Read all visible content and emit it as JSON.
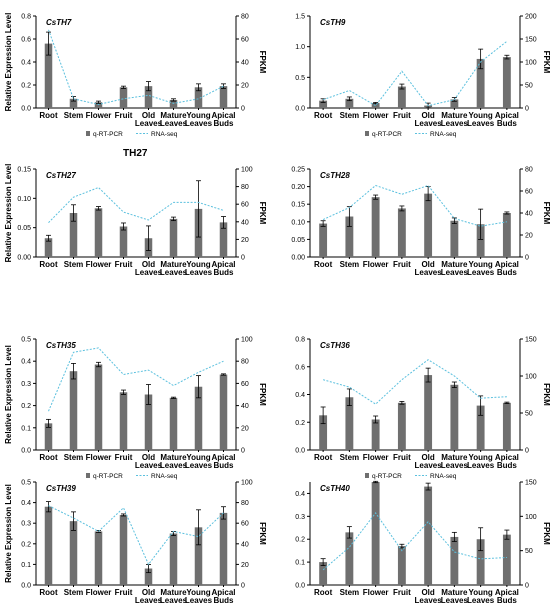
{
  "stray_label": "TH27",
  "colors": {
    "bar": "#6f6f6f",
    "line": "#5bc0de",
    "axis": "#000000"
  },
  "chart_data": [
    {
      "type": "bar",
      "title": "CsTH7",
      "ylabel": "Relative Expression Level",
      "y2label": "FPKM",
      "categories": [
        "Root",
        "Stem",
        "Flower",
        "Fruit",
        "Old Leaves",
        "Mature Leaves",
        "Young Leaves",
        "Apical Buds"
      ],
      "ylim": [
        0,
        0.8
      ],
      "yticks": [
        "0.0",
        "0.2",
        "0.4",
        "0.6",
        "0.8"
      ],
      "y2lim": [
        0,
        80
      ],
      "y2ticks": [
        "0",
        "20",
        "40",
        "60",
        "80"
      ],
      "series": [
        {
          "name": "q-RT-PCR",
          "type": "bar",
          "values": [
            0.56,
            0.08,
            0.05,
            0.18,
            0.19,
            0.07,
            0.18,
            0.19
          ],
          "errors": [
            0.1,
            0.02,
            0.01,
            0.01,
            0.04,
            0.01,
            0.03,
            0.02
          ]
        },
        {
          "name": "RNA-seq",
          "type": "line",
          "axis": "right",
          "values": [
            68,
            8,
            3,
            8,
            11,
            4,
            8,
            19
          ]
        }
      ],
      "legend": "bottom"
    },
    {
      "type": "bar",
      "title": "CsTH9",
      "ylabel": "",
      "y2label": "FPKM",
      "categories": [
        "Root",
        "Stem",
        "Flower",
        "Fruit",
        "Old Leaves",
        "Mature Leaves",
        "Young Leaves",
        "Apical Buds"
      ],
      "ylim": [
        0,
        1.5
      ],
      "yticks": [
        "0.0",
        "0.5",
        "1.0",
        "1.5"
      ],
      "y2lim": [
        0,
        200
      ],
      "y2ticks": [
        "0",
        "50",
        "100",
        "150",
        "200"
      ],
      "series": [
        {
          "name": "q-RT-PCR",
          "type": "bar",
          "values": [
            0.12,
            0.15,
            0.08,
            0.35,
            0.04,
            0.14,
            0.8,
            0.83
          ],
          "errors": [
            0.03,
            0.03,
            0.01,
            0.04,
            0.04,
            0.03,
            0.16,
            0.03
          ]
        },
        {
          "name": "RNA-seq",
          "type": "line",
          "axis": "right",
          "values": [
            18,
            38,
            5,
            80,
            5,
            18,
            100,
            145
          ]
        }
      ],
      "legend": "bottom"
    },
    {
      "type": "bar",
      "title": "CsTH27",
      "ylabel": "Relative Expression Level",
      "y2label": "FPKM",
      "categories": [
        "Root",
        "Stem",
        "Flower",
        "Fruit",
        "Old Leaves",
        "Mature Leaves",
        "Young Leaves",
        "Apical Buds"
      ],
      "ylim": [
        0,
        0.15
      ],
      "yticks": [
        "0.00",
        "0.05",
        "0.10",
        "0.15"
      ],
      "y2lim": [
        0,
        100
      ],
      "y2ticks": [
        "0",
        "20",
        "40",
        "60",
        "80",
        "100"
      ],
      "series": [
        {
          "name": "q-RT-PCR",
          "type": "bar",
          "values": [
            0.032,
            0.075,
            0.083,
            0.052,
            0.032,
            0.065,
            0.082,
            0.059
          ],
          "errors": [
            0.005,
            0.014,
            0.003,
            0.006,
            0.021,
            0.003,
            0.048,
            0.01
          ]
        },
        {
          "name": "RNA-seq",
          "type": "line",
          "axis": "right",
          "values": [
            39,
            68,
            79,
            51,
            42,
            62,
            62,
            53
          ]
        }
      ],
      "legend": "none"
    },
    {
      "type": "bar",
      "title": "CsTH28",
      "ylabel": "",
      "y2label": "FPKM",
      "categories": [
        "Root",
        "Stem",
        "Flower",
        "Fruit",
        "Old Leaves",
        "Mature Leaves",
        "Young Leaves",
        "Apical Buds"
      ],
      "ylim": [
        0,
        0.25
      ],
      "yticks": [
        "0.00",
        "0.05",
        "0.10",
        "0.15",
        "0.20",
        "0.25"
      ],
      "y2lim": [
        0,
        80
      ],
      "y2ticks": [
        "0",
        "20",
        "40",
        "60",
        "80"
      ],
      "series": [
        {
          "name": "q-RT-PCR",
          "type": "bar",
          "values": [
            0.095,
            0.115,
            0.17,
            0.138,
            0.18,
            0.103,
            0.093,
            0.125
          ],
          "errors": [
            0.008,
            0.028,
            0.006,
            0.007,
            0.02,
            0.008,
            0.043,
            0.003
          ]
        },
        {
          "name": "RNA-seq",
          "type": "line",
          "axis": "right",
          "values": [
            34,
            45,
            65,
            57,
            65,
            35,
            28,
            32
          ]
        }
      ],
      "legend": "none"
    },
    {
      "type": "bar",
      "title": "CsTH35",
      "ylabel": "Relative Expression Level",
      "y2label": "FPKM",
      "categories": [
        "Root",
        "Stem",
        "Flower",
        "Fruit",
        "Old Leaves",
        "Mature Leaves",
        "Young Leaves",
        "Apical Buds"
      ],
      "ylim": [
        0,
        0.5
      ],
      "yticks": [
        "0.0",
        "0.1",
        "0.2",
        "0.3",
        "0.4",
        "0.5"
      ],
      "y2lim": [
        0,
        100
      ],
      "y2ticks": [
        "0",
        "20",
        "40",
        "60",
        "80",
        "100"
      ],
      "series": [
        {
          "name": "q-RT-PCR",
          "type": "bar",
          "values": [
            0.12,
            0.355,
            0.385,
            0.26,
            0.25,
            0.235,
            0.285,
            0.34
          ],
          "errors": [
            0.018,
            0.035,
            0.01,
            0.01,
            0.045,
            0.003,
            0.05,
            0.003
          ]
        },
        {
          "name": "RNA-seq",
          "type": "line",
          "axis": "right",
          "values": [
            35,
            88,
            92,
            68,
            72,
            58,
            70,
            80
          ]
        }
      ],
      "legend": "bottom"
    },
    {
      "type": "bar",
      "title": "CsTH36",
      "ylabel": "",
      "y2label": "FPKM",
      "categories": [
        "Root",
        "Stem",
        "Flower",
        "Fruit",
        "Old Leaves",
        "Mature Leaves",
        "Young Leaves",
        "Apical Buds"
      ],
      "ylim": [
        0,
        0.8
      ],
      "yticks": [
        "0.0",
        "0.2",
        "0.4",
        "0.6",
        "0.8"
      ],
      "y2lim": [
        0,
        150
      ],
      "y2ticks": [
        "0",
        "50",
        "100",
        "150"
      ],
      "series": [
        {
          "name": "q-RT-PCR",
          "type": "bar",
          "values": [
            0.25,
            0.38,
            0.22,
            0.34,
            0.54,
            0.47,
            0.32,
            0.34
          ],
          "errors": [
            0.06,
            0.06,
            0.025,
            0.01,
            0.05,
            0.02,
            0.07,
            0.005
          ]
        },
        {
          "name": "RNA-seq",
          "type": "line",
          "axis": "right",
          "values": [
            95,
            85,
            62,
            95,
            122,
            100,
            70,
            72
          ]
        }
      ],
      "legend": "bottom"
    },
    {
      "type": "bar",
      "title": "CsTH39",
      "ylabel": "Relative Expression Level",
      "y2label": "FPKM",
      "categories": [
        "Root",
        "Stem",
        "Flower",
        "Fruit",
        "Old Leaves",
        "Mature Leaves",
        "Young Leaves",
        "Apical Buds"
      ],
      "ylim": [
        0,
        0.5
      ],
      "yticks": [
        "0.0",
        "0.1",
        "0.2",
        "0.3",
        "0.4",
        "0.5"
      ],
      "y2lim": [
        0,
        100
      ],
      "y2ticks": [
        "0",
        "20",
        "40",
        "60",
        "80",
        "100"
      ],
      "series": [
        {
          "name": "q-RT-PCR",
          "type": "bar",
          "values": [
            0.38,
            0.31,
            0.26,
            0.34,
            0.08,
            0.25,
            0.28,
            0.35
          ],
          "errors": [
            0.025,
            0.045,
            0.005,
            0.005,
            0.02,
            0.01,
            0.085,
            0.03
          ]
        },
        {
          "name": "RNA-seq",
          "type": "line",
          "axis": "right",
          "values": [
            77,
            65,
            52,
            75,
            20,
            52,
            47,
            70
          ]
        }
      ],
      "legend": "none"
    },
    {
      "type": "bar",
      "title": "CsTH40",
      "ylabel": "",
      "y2label": "FPKM",
      "categories": [
        "Root",
        "Stem",
        "Flower",
        "Fruit",
        "Old Leaves",
        "Mature Leaves",
        "Young Leaves",
        "Apical Buds"
      ],
      "ylim": [
        0,
        0.45
      ],
      "yticks": [
        "0.0",
        "0.1",
        "0.2",
        "0.3",
        "0.4"
      ],
      "y2lim": [
        0,
        150
      ],
      "y2ticks": [
        "0",
        "50",
        "100",
        "150"
      ],
      "series": [
        {
          "name": "q-RT-PCR",
          "type": "bar",
          "values": [
            0.1,
            0.23,
            0.45,
            0.17,
            0.43,
            0.21,
            0.2,
            0.22
          ],
          "errors": [
            0.015,
            0.025,
            0.003,
            0.008,
            0.015,
            0.02,
            0.05,
            0.02
          ]
        },
        {
          "name": "RNA-seq",
          "type": "line",
          "axis": "right",
          "values": [
            22,
            55,
            105,
            50,
            92,
            48,
            38,
            40
          ]
        }
      ],
      "legend": "none"
    }
  ]
}
